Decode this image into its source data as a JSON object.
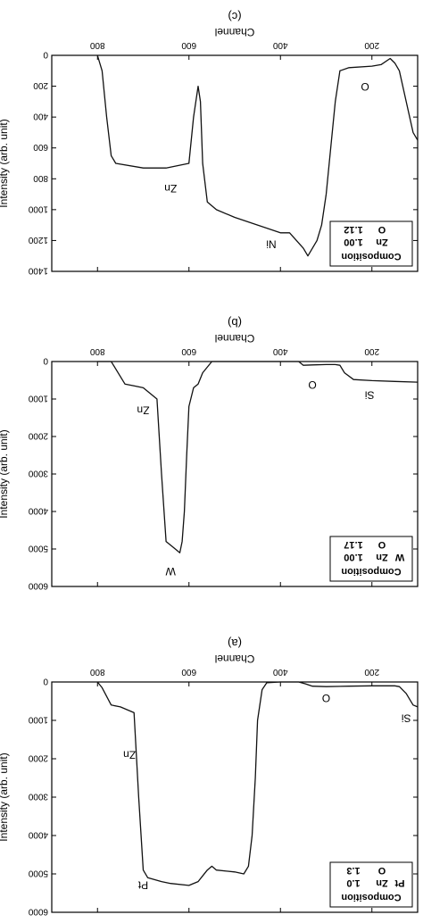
{
  "chart_data": [
    {
      "type": "line",
      "panel_label": "(a)",
      "xlabel": "Channel",
      "ylabel": "Intensity (arb. unit)",
      "xlim": [
        100,
        900
      ],
      "ylim": [
        0,
        6000
      ],
      "x_ticks": [
        200,
        400,
        600,
        800
      ],
      "y_ticks": [
        0,
        1000,
        2000,
        3000,
        4000,
        5000,
        6000
      ],
      "legend": {
        "title": "Composition",
        "lines": [
          [
            "Pt",
            "Zn",
            "1.0"
          ],
          [
            "",
            "O",
            "1.3"
          ]
        ]
      },
      "annotations": [
        {
          "text": "Si",
          "x": 125,
          "y": 850
        },
        {
          "text": "O",
          "x": 300,
          "y": 330
        },
        {
          "text": "Pt",
          "x": 700,
          "y": 5200
        },
        {
          "text": "Zn",
          "x": 730,
          "y": 1800
        }
      ],
      "series": [
        {
          "x": [
            100,
            110,
            125,
            140,
            150,
            200,
            250,
            300,
            330,
            345,
            360,
            400,
            430,
            440,
            450,
            455,
            462,
            470,
            480,
            500,
            540,
            550,
            560,
            570,
            580,
            600,
            640,
            660,
            690,
            700,
            710,
            720,
            750,
            770,
            790,
            800
          ],
          "y": [
            650,
            600,
            300,
            120,
            100,
            100,
            110,
            120,
            110,
            50,
            0,
            0,
            20,
            200,
            1000,
            2500,
            4000,
            4800,
            5000,
            4950,
            4900,
            4800,
            4900,
            5050,
            5200,
            5300,
            5250,
            5200,
            5100,
            4900,
            3000,
            800,
            650,
            600,
            150,
            0
          ]
        }
      ]
    },
    {
      "type": "line",
      "panel_label": "(b)",
      "xlabel": "Channel",
      "ylabel": "Intensity (arb. unit)",
      "xlim": [
        100,
        900
      ],
      "ylim": [
        0,
        6000
      ],
      "x_ticks": [
        200,
        400,
        600,
        800
      ],
      "y_ticks": [
        0,
        1000,
        2000,
        3000,
        4000,
        5000,
        6000
      ],
      "legend": {
        "title": "Composition",
        "lines": [
          [
            "W",
            "Zn",
            "1.00"
          ],
          [
            "",
            "O",
            "1.17"
          ]
        ]
      },
      "annotations": [
        {
          "text": "Si",
          "x": 205,
          "y": 800
        },
        {
          "text": "O",
          "x": 330,
          "y": 520
        },
        {
          "text": "W",
          "x": 640,
          "y": 5500
        },
        {
          "text": "Zn",
          "x": 700,
          "y": 1200
        }
      ],
      "series": [
        {
          "x": [
            100,
            150,
            200,
            240,
            260,
            270,
            280,
            300,
            330,
            350,
            360,
            400,
            450,
            500,
            550,
            570,
            580,
            590,
            600,
            605,
            610,
            615,
            620,
            630,
            640,
            650,
            660,
            670,
            700,
            720,
            740,
            770,
            800
          ],
          "y": [
            550,
            530,
            510,
            480,
            300,
            100,
            80,
            80,
            90,
            100,
            0,
            0,
            0,
            0,
            0,
            300,
            600,
            700,
            1200,
            2500,
            4000,
            4800,
            5100,
            5000,
            4900,
            4800,
            3000,
            1000,
            700,
            650,
            600,
            0,
            0
          ]
        }
      ]
    },
    {
      "type": "line",
      "panel_label": "(c)",
      "xlabel": "Channel",
      "ylabel": "Intensity (arb. unit)",
      "xlim": [
        100,
        900
      ],
      "ylim": [
        0,
        1400
      ],
      "x_ticks": [
        200,
        400,
        600,
        800
      ],
      "y_ticks": [
        0,
        200,
        400,
        600,
        800,
        1000,
        1200,
        1400
      ],
      "legend": {
        "title": "Composition",
        "lines": [
          [
            "Zn",
            "1.00"
          ],
          [
            "O",
            "1.12"
          ]
        ]
      },
      "annotations": [
        {
          "text": "O",
          "x": 215,
          "y": 180
        },
        {
          "text": "Ni",
          "x": 420,
          "y": 1200
        },
        {
          "text": "Zn",
          "x": 640,
          "y": 840
        }
      ],
      "series": [
        {
          "x": [
            100,
            110,
            125,
            140,
            150,
            160,
            180,
            200,
            250,
            270,
            280,
            290,
            300,
            310,
            320,
            330,
            340,
            350,
            380,
            400,
            450,
            500,
            540,
            560,
            570,
            575,
            580,
            590,
            600,
            650,
            700,
            760,
            770,
            780,
            790,
            800
          ],
          "y": [
            550,
            500,
            300,
            100,
            50,
            20,
            60,
            70,
            80,
            100,
            300,
            600,
            900,
            1100,
            1200,
            1250,
            1300,
            1250,
            1150,
            1150,
            1100,
            1050,
            1000,
            950,
            700,
            300,
            200,
            400,
            700,
            730,
            730,
            700,
            650,
            400,
            100,
            0
          ]
        }
      ]
    }
  ]
}
